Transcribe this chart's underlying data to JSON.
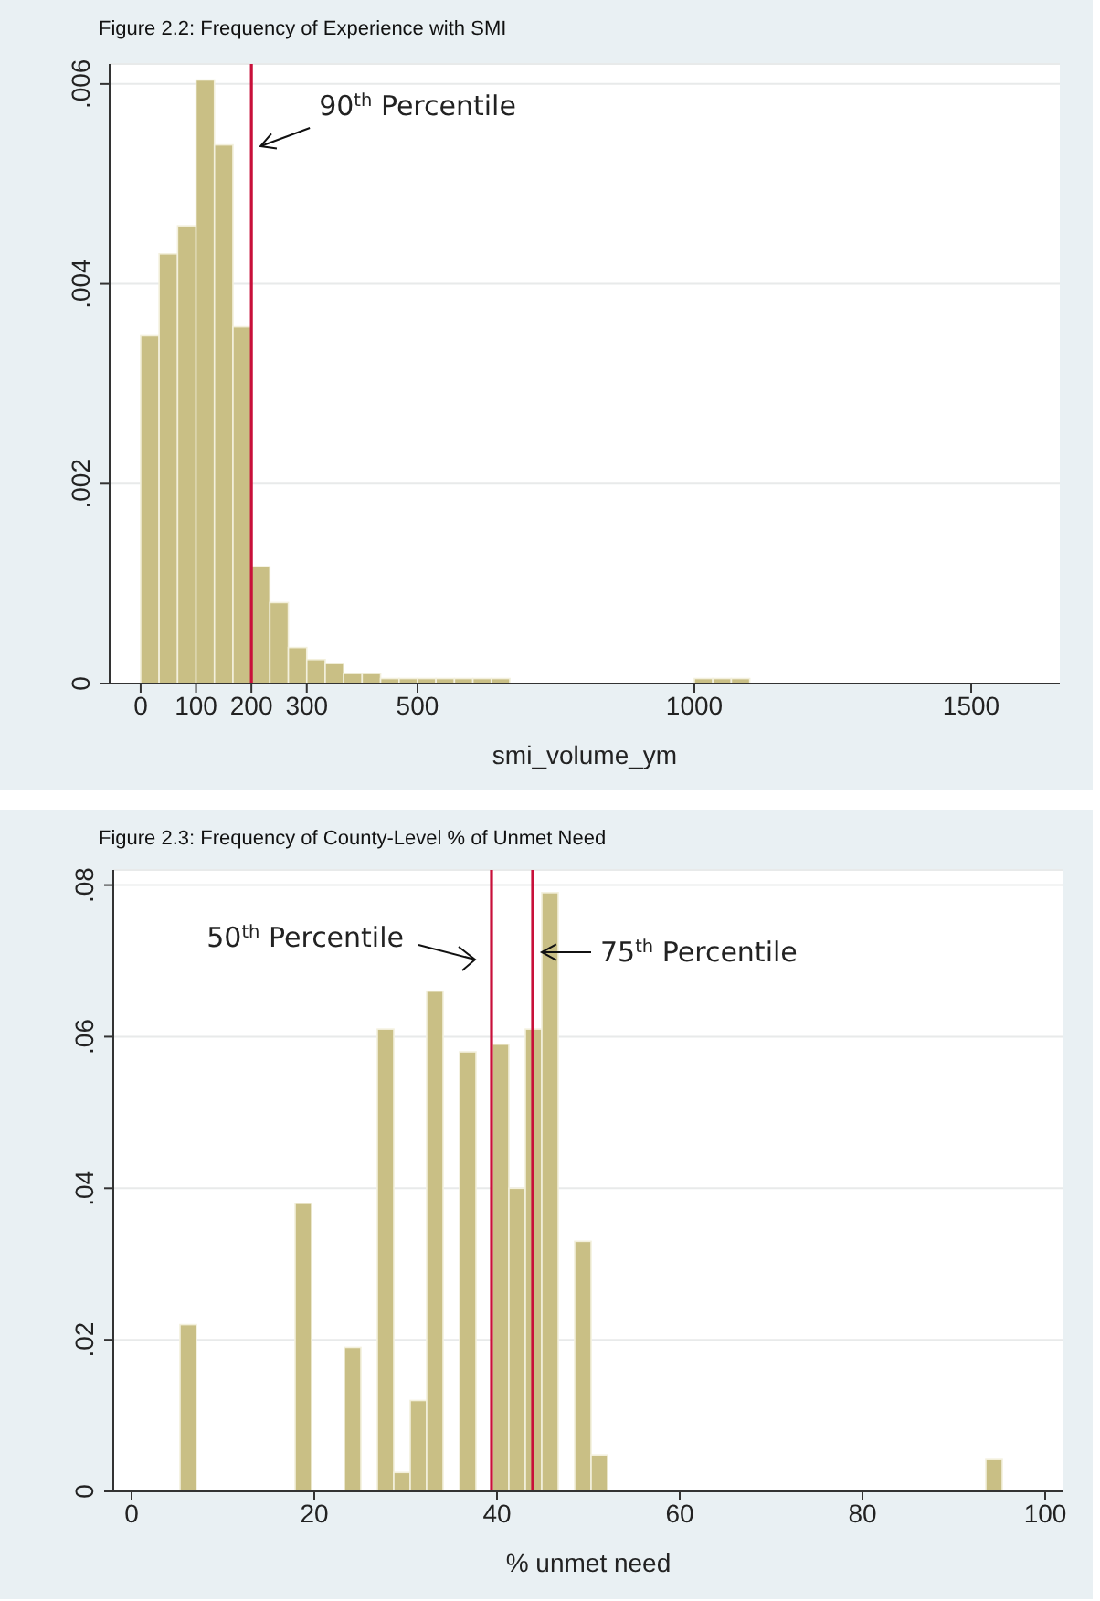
{
  "chart_data": [
    {
      "type": "histogram",
      "title": "Figure 2.2: Frequency of Experience with SMI",
      "xlabel": "smi_volume_ym",
      "bins": [
        0,
        33.3,
        66.7,
        100,
        133.3,
        166.7,
        200,
        233.3,
        266.7,
        300,
        333.3,
        366.7,
        400,
        433.3,
        466.7,
        500,
        533.3,
        566.7,
        600,
        633.3,
        666.7,
        700,
        733.3,
        766.7,
        800,
        833.3,
        866.7,
        900,
        933.3,
        966.7,
        1000,
        1033.3,
        1066.7,
        1100,
        1133.3,
        1166.7,
        1200,
        1233.3,
        1266.7,
        1300,
        1333.3,
        1366.7,
        1400,
        1433.3,
        1466.7,
        1500,
        1533.3,
        1566.7,
        1600,
        1633.3
      ],
      "values": [
        0.00348,
        0.0043,
        0.00458,
        0.00604,
        0.00539,
        0.00357,
        0.00117,
        0.00081,
        0.00036,
        0.00024,
        0.0002,
        0.0001,
        0.0001,
        5e-05,
        5e-05,
        5e-05,
        5e-05,
        5e-05,
        5e-05,
        5e-05,
        0,
        0,
        0,
        0,
        0,
        0,
        0,
        0,
        0,
        0,
        5e-05,
        5e-05,
        5e-05,
        0,
        0,
        0,
        0,
        0,
        0,
        0,
        0,
        0,
        0,
        0,
        0,
        0,
        0,
        0,
        0
      ],
      "color": "#c9bf85",
      "xlim": [
        -56,
        1660
      ],
      "xticks": [
        0,
        100,
        200,
        300,
        500,
        1000,
        1500
      ],
      "ylim": [
        0,
        0.0062
      ],
      "yticks": [
        0,
        {
          "value": 0.002,
          "label": ".002"
        },
        {
          "value": 0.004,
          "label": ".004"
        },
        {
          "value": 0.006,
          "label": ".006"
        }
      ],
      "grid": "y",
      "ref_lines": [
        {
          "axis": "x",
          "value": 200,
          "label": "90$^{th}$ Percentile",
          "color": "#c8103a"
        }
      ]
    },
    {
      "type": "histogram",
      "title": "Figure 2.3: Frequency of County-Level % of Unmet Need",
      "xlabel": "% unmet need",
      "bins": [
        5.3,
        7.1,
        8.9,
        10.7,
        12.5,
        14.3,
        16.1,
        17.9,
        19.7,
        21.5,
        23.3,
        25.1,
        26.9,
        28.7,
        30.5,
        32.3,
        34.1,
        35.9,
        37.7,
        39.5,
        41.3,
        43.1,
        44.9,
        46.7,
        48.5,
        50.3,
        52.1,
        53.9,
        55.7,
        57.5,
        59.3,
        61.1,
        62.9,
        64.7,
        66.5,
        68.3,
        70.1,
        71.9,
        73.7,
        75.5,
        77.3,
        79.1,
        80.9,
        82.7,
        84.5,
        86.3,
        88.1,
        89.9,
        91.7,
        93.5,
        95.3
      ],
      "values": [
        0.022,
        0,
        0,
        0,
        0,
        0,
        0,
        0.038,
        0,
        0,
        0.019,
        0,
        0.061,
        0.0025,
        0.012,
        0.066,
        0,
        0.058,
        0,
        0.059,
        0.04,
        0.061,
        0.079,
        0,
        0.033,
        0.0048,
        0,
        0,
        0,
        0,
        0,
        0,
        0,
        0,
        0,
        0,
        0,
        0,
        0,
        0,
        0,
        0,
        0,
        0,
        0,
        0,
        0,
        0,
        0,
        0.0042
      ],
      "color": "#c9bf85",
      "xlim": [
        -2,
        102
      ],
      "xticks": [
        0,
        20,
        40,
        60,
        80,
        100
      ],
      "ylim": [
        0,
        0.082
      ],
      "yticks": [
        0,
        {
          "value": 0.02,
          "label": ".02"
        },
        {
          "value": 0.04,
          "label": ".04"
        },
        {
          "value": 0.06,
          "label": ".06"
        },
        {
          "value": 0.08,
          "label": ".08"
        }
      ],
      "grid": "y",
      "ref_lines": [
        {
          "axis": "x",
          "value": 39.4,
          "label": "50$^{th}$ Percentile",
          "color": "#c8103a"
        },
        {
          "axis": "x",
          "value": 43.9,
          "label": "75$^{th}$ Percentile",
          "color": "#c8103a"
        }
      ]
    }
  ]
}
